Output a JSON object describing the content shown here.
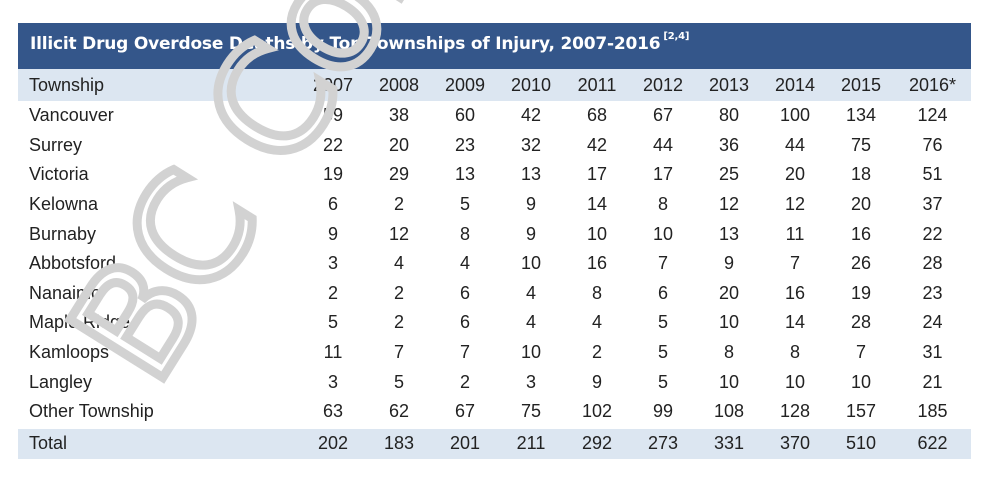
{
  "chart_data": {
    "type": "table",
    "title": "Illicit Drug Overdose Deaths by Top Townships of Injury, 2007-2016",
    "title_ref": "[2,4]",
    "columns": [
      "Township",
      "2007",
      "2008",
      "2009",
      "2010",
      "2011",
      "2012",
      "2013",
      "2014",
      "2015",
      "2016*"
    ],
    "rows": [
      {
        "township": "Vancouver",
        "values": [
          "59",
          "38",
          "60",
          "42",
          "68",
          "67",
          "80",
          "100",
          "134",
          "124"
        ]
      },
      {
        "township": "Surrey",
        "values": [
          "22",
          "20",
          "23",
          "32",
          "42",
          "44",
          "36",
          "44",
          "75",
          "76"
        ]
      },
      {
        "township": "Victoria",
        "values": [
          "19",
          "29",
          "13",
          "13",
          "17",
          "17",
          "25",
          "20",
          "18",
          "51"
        ]
      },
      {
        "township": "Kelowna",
        "values": [
          "6",
          "2",
          "5",
          "9",
          "14",
          "8",
          "12",
          "12",
          "20",
          "37"
        ]
      },
      {
        "township": "Burnaby",
        "values": [
          "9",
          "12",
          "8",
          "9",
          "10",
          "10",
          "13",
          "11",
          "16",
          "22"
        ]
      },
      {
        "township": "Abbotsford",
        "values": [
          "3",
          "4",
          "4",
          "10",
          "16",
          "7",
          "9",
          "7",
          "26",
          "28"
        ]
      },
      {
        "township": "Nanaimo",
        "values": [
          "2",
          "2",
          "6",
          "4",
          "8",
          "6",
          "20",
          "16",
          "19",
          "23"
        ]
      },
      {
        "township": "Maple Ridge",
        "values": [
          "5",
          "2",
          "6",
          "4",
          "4",
          "5",
          "10",
          "14",
          "28",
          "24"
        ]
      },
      {
        "township": "Kamloops",
        "values": [
          "11",
          "7",
          "7",
          "10",
          "2",
          "5",
          "8",
          "8",
          "7",
          "31"
        ]
      },
      {
        "township": "Langley",
        "values": [
          "3",
          "5",
          "2",
          "3",
          "9",
          "5",
          "10",
          "10",
          "10",
          "21"
        ]
      },
      {
        "township": "Other Township",
        "values": [
          "63",
          "62",
          "67",
          "75",
          "102",
          "99",
          "108",
          "128",
          "157",
          "185"
        ]
      }
    ],
    "total": {
      "township": "Total",
      "values": [
        "202",
        "183",
        "201",
        "211",
        "292",
        "273",
        "331",
        "370",
        "510",
        "622"
      ]
    }
  },
  "watermark": {
    "text": "BC Cor"
  },
  "colors": {
    "header_bg": "#34568a",
    "row_highlight": "#dce6f1",
    "watermark": "#d2d2d2"
  }
}
